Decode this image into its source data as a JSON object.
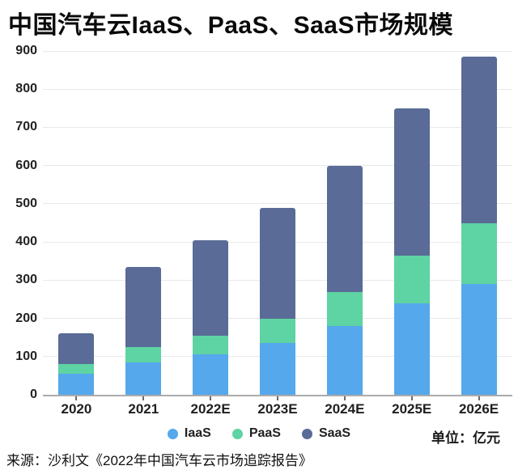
{
  "title": "中国汽车云IaaS、PaaS、SaaS市场规模",
  "unit_label": "单位：亿元",
  "source_line": "来源：沙利文《2022年中国汽车云市场追踪报告》",
  "colors": {
    "iaas_blue": "#55a8ec",
    "paas_green": "#5ed3a3",
    "saas_slate": "#596b96",
    "gridline": "#e9e9e9",
    "axis_line": "#ababab",
    "text_dark": "#1f1f1f",
    "background": "#ffffff"
  },
  "chart_data": {
    "type": "bar",
    "stacked": true,
    "title": "中国汽车云IaaS、PaaS、SaaS市场规模",
    "unit": "亿元",
    "categories": [
      "2020",
      "2021",
      "2022E",
      "2023E",
      "2024E",
      "2025E",
      "2026E"
    ],
    "series": [
      {
        "name": "IaaS",
        "color": "#55a8ec",
        "values": [
          55,
          85,
          105,
          135,
          180,
          240,
          290
        ]
      },
      {
        "name": "PaaS",
        "color": "#5ed3a3",
        "values": [
          25,
          40,
          50,
          65,
          90,
          125,
          160
        ]
      },
      {
        "name": "SaaS",
        "color": "#596b96",
        "values": [
          80,
          210,
          250,
          290,
          330,
          385,
          435
        ]
      }
    ],
    "totals": [
      160,
      335,
      405,
      490,
      600,
      750,
      885
    ],
    "ylim": [
      0,
      900
    ],
    "yticks": [
      0,
      100,
      200,
      300,
      400,
      500,
      600,
      700,
      800,
      900
    ],
    "xlabel": "",
    "ylabel": "",
    "grid": true,
    "legend_position": "bottom"
  }
}
